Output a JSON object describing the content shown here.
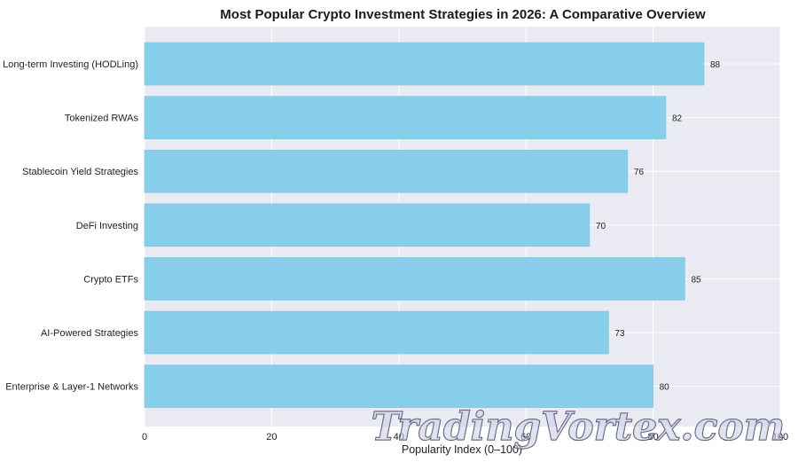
{
  "chart_data": {
    "type": "bar",
    "orientation": "horizontal",
    "title": "Most Popular Crypto Investment Strategies in 2026: A Comparative Overview",
    "xlabel": "Popularity Index (0–100)",
    "ylabel": "",
    "xlim": [
      0,
      100
    ],
    "x_ticks": [
      "0",
      "20",
      "40",
      "60",
      "80",
      "100"
    ],
    "categories": [
      "Long-term Investing (HODLing)",
      "Tokenized RWAs",
      "Stablecoin Yield Strategies",
      "DeFi Investing",
      "Crypto ETFs",
      "AI-Powered Strategies",
      "Enterprise & Layer-1 Networks"
    ],
    "values": [
      88,
      82,
      76,
      70,
      85,
      73,
      80
    ],
    "value_labels": [
      "88",
      "82",
      "76",
      "70",
      "85",
      "73",
      "80"
    ],
    "grid": true,
    "colors": {
      "bar": "#87ceeb",
      "bar_edge": "#7ec4e2",
      "plot_background": "#eaeaf2",
      "grid": "#ffffff"
    }
  },
  "watermark": {
    "text": "TradingVortex.com"
  }
}
